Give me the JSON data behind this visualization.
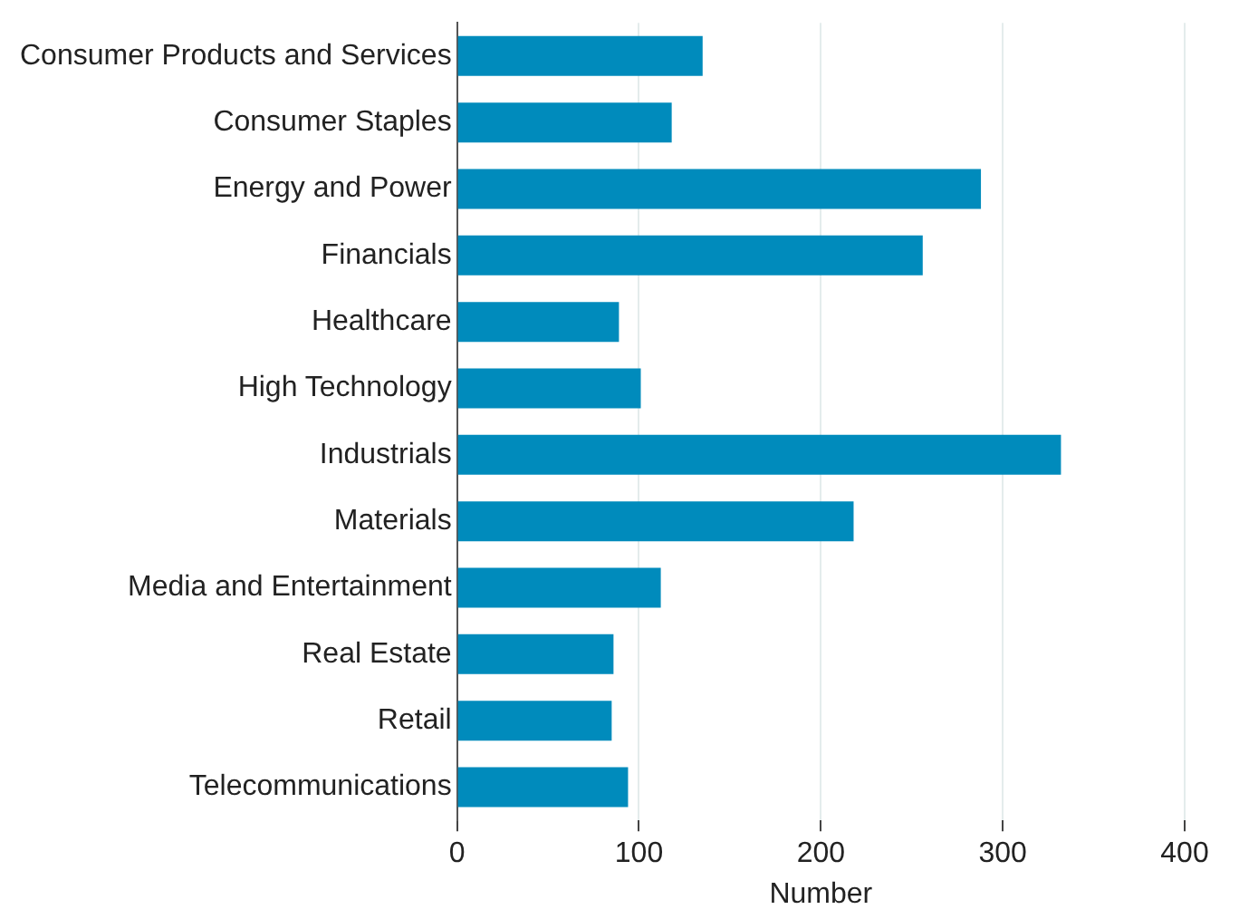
{
  "chart_data": {
    "type": "bar",
    "orientation": "horizontal",
    "xlabel": "Number",
    "categories": [
      "Consumer Products and Services",
      "Consumer Staples",
      "Energy and Power",
      "Financials",
      "Healthcare",
      "High Technology",
      "Industrials",
      "Materials",
      "Media and Entertainment",
      "Real Estate",
      "Retail",
      "Telecommunications"
    ],
    "values": [
      135,
      118,
      288,
      256,
      89,
      101,
      332,
      218,
      112,
      86,
      85,
      94
    ],
    "color": "#008bbc",
    "xlim": [
      0,
      400
    ],
    "xticks": [
      0,
      100,
      200,
      300,
      400
    ],
    "grid": "x",
    "legend": false
  }
}
